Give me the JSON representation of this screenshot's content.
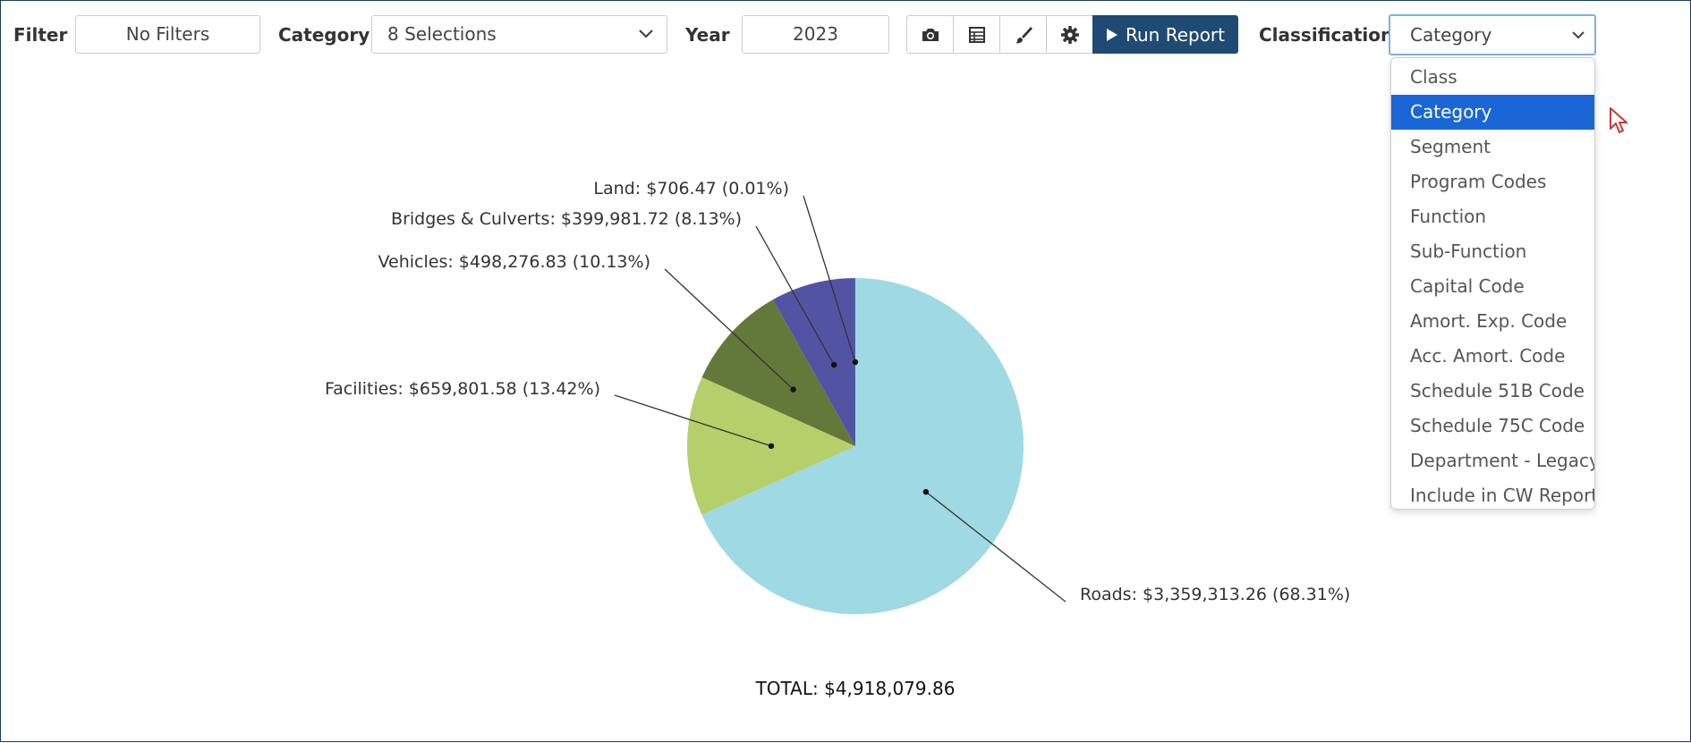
{
  "toolbar": {
    "filter_label": "Filter",
    "filter_value": "No Filters",
    "category_label": "Category",
    "category_value": "8 Selections",
    "year_label": "Year",
    "year_value": "2023",
    "camera_icon": "camera-icon",
    "table_icon": "table-icon",
    "brush_icon": "brush-icon",
    "gear_icon": "gear-icon",
    "run_label": "Run Report",
    "classification_label": "Classification",
    "classification_value": "Category"
  },
  "classification_options": [
    "Class",
    "Category",
    "Segment",
    "Program Codes",
    "Function",
    "Sub-Function",
    "Capital Code",
    "Amort. Exp. Code",
    "Acc. Amort. Code",
    "Schedule 51B Code",
    "Schedule 75C Code",
    "Department - Legacy",
    "Include in CW Reports"
  ],
  "selected_option_index": 1,
  "colors": {
    "run_button": "#1f4a73",
    "selected_option": "#1a66d6"
  },
  "chart_data": {
    "type": "pie",
    "slices": [
      {
        "name": "Roads",
        "value": 3359313.26,
        "percent": 68.31,
        "color": "#9fd9e4",
        "label": "Roads: $3,359,313.26 (68.31%)"
      },
      {
        "name": "Facilities",
        "value": 659801.58,
        "percent": 13.42,
        "color": "#b5cf6b",
        "label": "Facilities: $659,801.58 (13.42%)"
      },
      {
        "name": "Vehicles",
        "value": 498276.83,
        "percent": 10.13,
        "color": "#637939",
        "label": "Vehicles: $498,276.83 (10.13%)"
      },
      {
        "name": "Bridges & Culverts",
        "value": 399981.72,
        "percent": 8.13,
        "color": "#5254a3",
        "label": "Bridges & Culverts: $399,981.72 (8.13%)"
      },
      {
        "name": "Land",
        "value": 706.47,
        "percent": 0.01,
        "color": "#393b79",
        "label": "Land: $706.47 (0.01%)"
      }
    ],
    "total_label": "TOTAL: $4,918,079.86"
  }
}
